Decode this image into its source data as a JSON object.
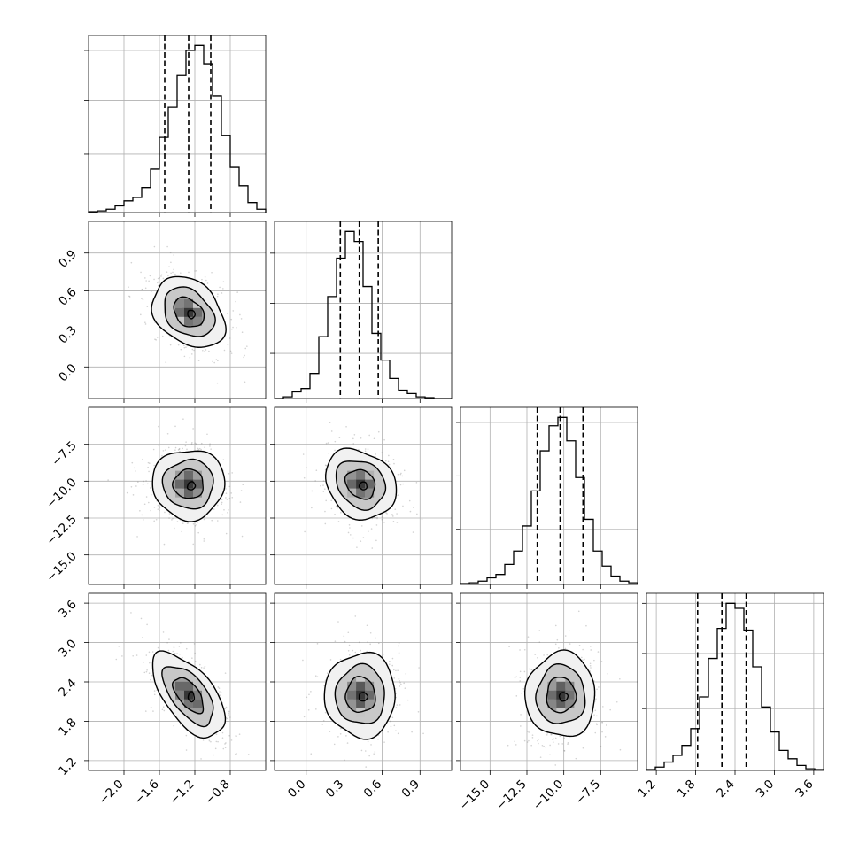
{
  "chart_data": {
    "type": "corner",
    "parameters": [
      {
        "range": [
          -2.4,
          -0.4
        ],
        "ticks": [
          -2.0,
          -1.6,
          -1.2,
          -0.8
        ],
        "tick_labels": [
          "−2.0",
          "−1.6",
          "−1.2",
          "−0.8"
        ],
        "mean": -1.27,
        "sd": 0.19,
        "quantiles": [
          -1.54,
          -1.27,
          -1.02
        ]
      },
      {
        "range": [
          -0.25,
          1.15
        ],
        "ticks": [
          0.0,
          0.3,
          0.6,
          0.9
        ],
        "tick_labels": [
          "0.0",
          "0.3",
          "0.6",
          "0.9"
        ],
        "mean": 0.43,
        "sd": 0.13,
        "quantiles": [
          0.27,
          0.42,
          0.57
        ]
      },
      {
        "range": [
          -17.0,
          -5.0
        ],
        "ticks": [
          -15.0,
          -12.5,
          -10.0,
          -7.5
        ],
        "tick_labels": [
          "−15.0",
          "−12.5",
          "−10.0",
          "−7.5"
        ],
        "mean": -10.2,
        "sd": 1.1,
        "quantiles": [
          -11.8,
          -10.25,
          -8.7
        ]
      },
      {
        "range": [
          1.05,
          3.75
        ],
        "ticks": [
          1.2,
          1.8,
          2.4,
          3.0,
          3.6
        ],
        "tick_labels": [
          "1.2",
          "1.8",
          "2.4",
          "3.0",
          "3.6"
        ],
        "mean": 2.2,
        "sd": 0.3,
        "quantiles": [
          1.83,
          2.2,
          2.57
        ]
      }
    ],
    "correlations": {
      "1-0": -0.3,
      "2-0": 0.0,
      "2-1": -0.2,
      "3-0": -0.6,
      "3-1": 0.0,
      "3-2": 0.0
    },
    "hist1d": [
      {
        "counts": [
          0.005,
          0.01,
          0.02,
          0.04,
          0.07,
          0.09,
          0.15,
          0.26,
          0.45,
          0.63,
          0.82,
          0.97,
          1.0,
          0.89,
          0.7,
          0.46,
          0.27,
          0.16,
          0.06,
          0.02
        ],
        "ymax": 1.06,
        "yticks": [
          0.35,
          0.67,
          0.97
        ]
      },
      {
        "counts": [
          0.0,
          0.01,
          0.04,
          0.06,
          0.15,
          0.37,
          0.61,
          0.84,
          1.0,
          0.94,
          0.67,
          0.39,
          0.23,
          0.12,
          0.05,
          0.03,
          0.01,
          0.005,
          0.0,
          0.0
        ],
        "ymax": 1.06,
        "yticks": [
          0.27,
          0.57,
          0.87
        ]
      },
      {
        "counts": [
          0.005,
          0.01,
          0.02,
          0.04,
          0.06,
          0.12,
          0.2,
          0.35,
          0.56,
          0.8,
          0.95,
          1.0,
          0.86,
          0.64,
          0.39,
          0.2,
          0.11,
          0.05,
          0.02,
          0.01
        ],
        "ymax": 1.06,
        "yticks": [
          0.33,
          0.65,
          0.97
        ]
      },
      {
        "counts": [
          0.005,
          0.02,
          0.05,
          0.09,
          0.15,
          0.25,
          0.44,
          0.67,
          0.85,
          1.0,
          0.97,
          0.84,
          0.62,
          0.38,
          0.23,
          0.12,
          0.07,
          0.03,
          0.01,
          0.005
        ],
        "ymax": 1.06,
        "yticks": [
          0.37,
          0.7,
          1.0
        ]
      }
    ],
    "grid": true,
    "quantile_style": "dashed"
  }
}
